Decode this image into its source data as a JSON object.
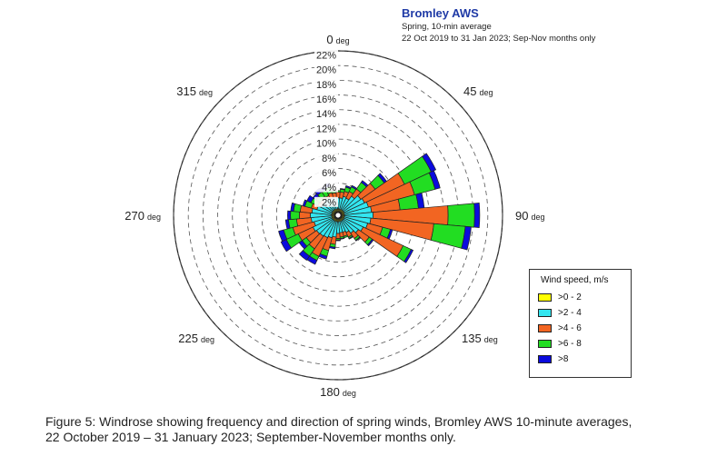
{
  "chart_data": {
    "type": "windrose",
    "title": "Bromley AWS",
    "subtitle": "Spring, 10-min average",
    "period": "22 Oct 2019 to 31 Jan 2023; Sep-Nov months only",
    "radial_axis": {
      "unit": "%",
      "max": 22,
      "ticks": [
        "2%",
        "4%",
        "6%",
        "8%",
        "10%",
        "12%",
        "14%",
        "16%",
        "18%",
        "20%",
        "22%"
      ]
    },
    "direction_labels": [
      {
        "angle": 0,
        "value": "0",
        "unit": "deg"
      },
      {
        "angle": 45,
        "value": "45",
        "unit": "deg"
      },
      {
        "angle": 90,
        "value": "90",
        "unit": "deg"
      },
      {
        "angle": 135,
        "value": "135",
        "unit": "deg"
      },
      {
        "angle": 180,
        "value": "180",
        "unit": "deg"
      },
      {
        "angle": 225,
        "value": "225",
        "unit": "deg"
      },
      {
        "angle": 270,
        "value": "270",
        "unit": "deg"
      },
      {
        "angle": 315,
        "value": "315",
        "unit": "deg"
      }
    ],
    "legend_title": "Wind speed, m/s",
    "legend_position": "bottom-right",
    "grid": true,
    "speed_bins": [
      {
        "name": ">0 - 2",
        "color": "#ffff00"
      },
      {
        "name": ">2 - 4",
        "color": "#33e6f0"
      },
      {
        "name": ">4 - 6",
        "color": "#f26522"
      },
      {
        "name": ">6 - 8",
        "color": "#22dd22"
      },
      {
        "name": ">8",
        "color": "#0b0bdd"
      }
    ],
    "sector_width_deg": 10,
    "directions": [
      {
        "dir": 0,
        "cumulative": [
          0.5,
          2.0,
          2.8,
          3.0,
          3.0
        ]
      },
      {
        "dir": 10,
        "cumulative": [
          0.5,
          2.0,
          2.8,
          3.2,
          3.3
        ]
      },
      {
        "dir": 20,
        "cumulative": [
          0.5,
          2.3,
          3.0,
          3.6,
          3.8
        ]
      },
      {
        "dir": 30,
        "cumulative": [
          0.5,
          2.2,
          3.2,
          3.9,
          4.1
        ]
      },
      {
        "dir": 40,
        "cumulative": [
          0.5,
          2.8,
          4.0,
          5.1,
          5.4
        ]
      },
      {
        "dir": 50,
        "cumulative": [
          0.5,
          3.4,
          5.8,
          7.3,
          7.7
        ]
      },
      {
        "dir": 60,
        "cumulative": [
          0.5,
          3.6,
          9.6,
          13.6,
          14.3
        ]
      },
      {
        "dir": 70,
        "cumulative": [
          0.5,
          3.9,
          10.4,
          13.3,
          14.0
        ]
      },
      {
        "dir": 80,
        "cumulative": [
          0.5,
          4.2,
          8.1,
          10.6,
          11.4
        ]
      },
      {
        "dir": 90,
        "cumulative": [
          0.5,
          4.4,
          14.6,
          18.2,
          18.9
        ]
      },
      {
        "dir": 100,
        "cumulative": [
          0.5,
          4.1,
          12.7,
          17.0,
          17.8
        ]
      },
      {
        "dir": 110,
        "cumulative": [
          0.5,
          3.8,
          5.9,
          7.0,
          7.3
        ]
      },
      {
        "dir": 120,
        "cumulative": [
          0.5,
          3.4,
          9.4,
          10.6,
          10.9
        ]
      },
      {
        "dir": 130,
        "cumulative": [
          0.5,
          3.0,
          4.8,
          5.3,
          5.5
        ]
      },
      {
        "dir": 140,
        "cumulative": [
          0.5,
          2.6,
          3.5,
          3.8,
          3.9
        ]
      },
      {
        "dir": 150,
        "cumulative": [
          0.5,
          2.2,
          2.9,
          3.1,
          3.2
        ]
      },
      {
        "dir": 160,
        "cumulative": [
          0.5,
          2.0,
          2.6,
          2.8,
          2.8
        ]
      },
      {
        "dir": 170,
        "cumulative": [
          0.5,
          2.0,
          2.6,
          2.8,
          2.9
        ]
      },
      {
        "dir": 180,
        "cumulative": [
          0.5,
          2.1,
          2.8,
          3.0,
          3.1
        ]
      },
      {
        "dir": 190,
        "cumulative": [
          0.5,
          2.6,
          3.6,
          4.0,
          4.2
        ]
      },
      {
        "dir": 200,
        "cumulative": [
          0.5,
          2.8,
          4.6,
          5.4,
          5.8
        ]
      },
      {
        "dir": 210,
        "cumulative": [
          0.5,
          3.0,
          5.8,
          6.4,
          7.0
        ]
      },
      {
        "dir": 220,
        "cumulative": [
          0.5,
          3.1,
          5.2,
          6.4,
          7.1
        ]
      },
      {
        "dir": 230,
        "cumulative": [
          0.5,
          3.2,
          4.9,
          5.6,
          6.1
        ]
      },
      {
        "dir": 240,
        "cumulative": [
          0.5,
          3.4,
          5.6,
          7.4,
          8.2
        ]
      },
      {
        "dir": 250,
        "cumulative": [
          0.5,
          3.0,
          6.0,
          7.3,
          8.0
        ]
      },
      {
        "dir": 260,
        "cumulative": [
          0.5,
          3.3,
          5.3,
          6.4,
          6.8
        ]
      },
      {
        "dir": 270,
        "cumulative": [
          0.5,
          3.4,
          4.9,
          6.1,
          6.5
        ]
      },
      {
        "dir": 280,
        "cumulative": [
          0.5,
          3.2,
          4.8,
          5.7,
          6.1
        ]
      },
      {
        "dir": 290,
        "cumulative": [
          0.5,
          2.6,
          3.4,
          4.3,
          4.6
        ]
      },
      {
        "dir": 300,
        "cumulative": [
          0.5,
          2.2,
          2.7,
          3.7,
          4.3
        ]
      },
      {
        "dir": 310,
        "cumulative": [
          0.5,
          2.2,
          2.6,
          3.3,
          3.8
        ]
      },
      {
        "dir": 320,
        "cumulative": [
          0.5,
          2.4,
          2.8,
          3.5,
          4.1
        ]
      },
      {
        "dir": 330,
        "cumulative": [
          0.5,
          2.3,
          2.6,
          3.4,
          4.0
        ]
      },
      {
        "dir": 340,
        "cumulative": [
          0.5,
          2.1,
          2.8,
          3.7,
          4.2
        ]
      },
      {
        "dir": 350,
        "cumulative": [
          0.5,
          2.1,
          2.7,
          3.1,
          3.2
        ]
      }
    ]
  },
  "caption": {
    "line1": "Figure 5: Windrose showing frequency and direction of spring winds, Bromley AWS 10-minute averages,",
    "line2": "22 October 2019 – 31 January 2023; September-November months only."
  }
}
